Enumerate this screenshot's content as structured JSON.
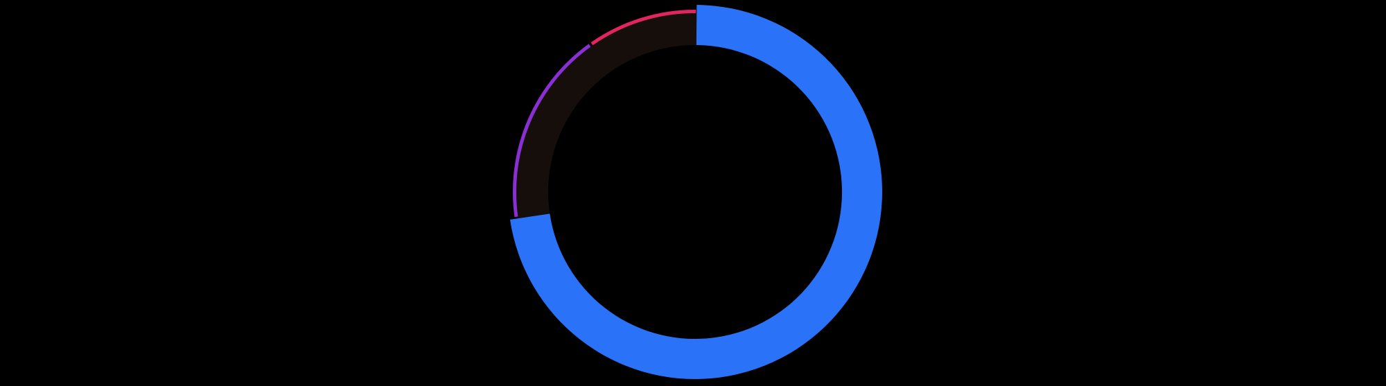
{
  "chart_data": {
    "type": "pie",
    "style": "donut",
    "title": "",
    "background_color": "#000000",
    "track_color": "#150e0a",
    "slices": [
      {
        "value": 72.5,
        "color": "#2a72f8"
      },
      {
        "value": 17.5,
        "color": "#8a2fd3"
      },
      {
        "value": 10.0,
        "color": "#e2245f"
      }
    ],
    "legend": "none",
    "data_labels": "none"
  }
}
